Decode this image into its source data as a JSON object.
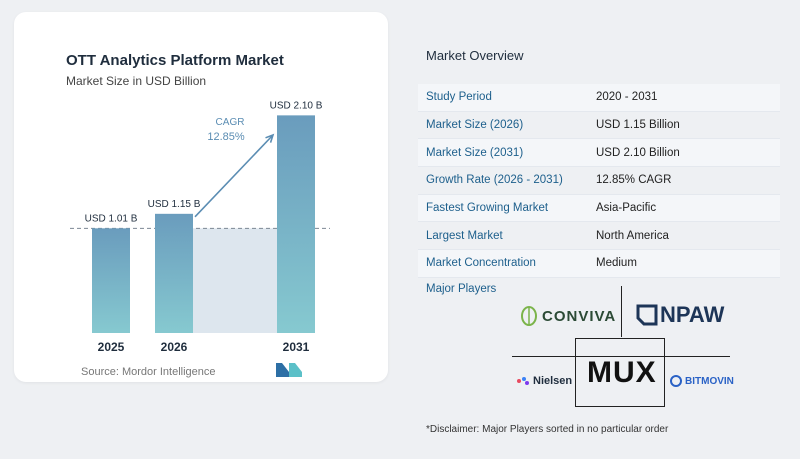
{
  "chart_data": {
    "type": "bar",
    "title": "OTT Analytics Platform Market",
    "subtitle": "Market Size in USD Billion",
    "categories": [
      "2025",
      "2026",
      "2031"
    ],
    "values": [
      1.01,
      1.15,
      2.1
    ],
    "value_labels": [
      "USD 1.01 B",
      "USD 1.15 B",
      "USD 2.10 B"
    ],
    "cagr_label": "CAGR",
    "cagr_value": "12.85%",
    "ylim": [
      0,
      2.2
    ],
    "bar_color": "#6a9cbd",
    "bar_color_light": "#86c9d0",
    "shade_color": "#dde6ee"
  },
  "source": "Source:  Mordor Intelligence",
  "overview": {
    "title": "Market Overview",
    "rows": [
      {
        "label": "Study Period",
        "value": "2020 - 2031"
      },
      {
        "label": "Market Size (2026)",
        "value": "USD 1.15 Billion"
      },
      {
        "label": "Market Size (2031)",
        "value": "USD 2.10 Billion"
      },
      {
        "label": "Growth Rate (2026 - 2031)",
        "value": "12.85% CAGR"
      },
      {
        "label": "Fastest Growing Market",
        "value": "Asia-Pacific"
      },
      {
        "label": "Largest Market",
        "value": "North America"
      },
      {
        "label": "Market Concentration",
        "value": "Medium"
      }
    ]
  },
  "players": {
    "title": "Major Players",
    "items": [
      "CONVIVA",
      "NPAW",
      "Nielsen",
      "MUX",
      "BITMOVIN"
    ]
  },
  "disclaimer": "*Disclaimer: Major Players sorted in no particular order"
}
